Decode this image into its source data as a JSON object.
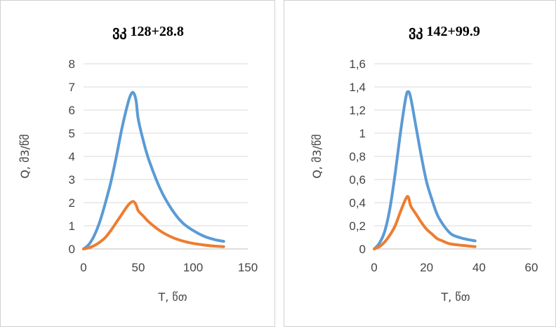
{
  "chart_data": [
    {
      "type": "line",
      "title": "ვკ 128+28.8",
      "xlabel": "T, წთ",
      "ylabel": "Q, მ3/წმ",
      "xlim": [
        0,
        150
      ],
      "ylim": [
        0,
        8
      ],
      "xticks": [
        "0",
        "50",
        "100",
        "150"
      ],
      "yticks": [
        "0",
        "1",
        "2",
        "3",
        "4",
        "5",
        "6",
        "7",
        "8"
      ],
      "grid": true,
      "series": [
        {
          "color": "#5b9bd5",
          "x": [
            0,
            5,
            10,
            15,
            20,
            25,
            30,
            35,
            40,
            43,
            45.6,
            48,
            50,
            55,
            60,
            70,
            80,
            90,
            100,
            110,
            120,
            128
          ],
          "y": [
            0,
            0.2,
            0.6,
            1.2,
            2.0,
            2.9,
            4.0,
            5.2,
            6.2,
            6.65,
            6.75,
            6.4,
            5.6,
            4.6,
            3.8,
            2.6,
            1.75,
            1.15,
            0.8,
            0.55,
            0.4,
            0.33
          ]
        },
        {
          "color": "#ed7d31",
          "x": [
            0,
            5,
            10,
            15,
            20,
            25,
            30,
            35,
            40,
            43,
            45.6,
            48,
            50,
            55,
            60,
            70,
            80,
            90,
            100,
            110,
            120,
            128
          ],
          "y": [
            0,
            0.05,
            0.15,
            0.3,
            0.5,
            0.8,
            1.15,
            1.5,
            1.85,
            2.0,
            2.05,
            1.9,
            1.65,
            1.4,
            1.15,
            0.78,
            0.52,
            0.35,
            0.24,
            0.17,
            0.12,
            0.1
          ]
        }
      ]
    },
    {
      "type": "line",
      "title": "ვკ 142+99.9",
      "xlabel": "T, წთ",
      "ylabel": "Q, მ3/წმ",
      "xlim": [
        0,
        60
      ],
      "ylim": [
        0,
        1.6
      ],
      "xticks": [
        "0",
        "20",
        "40",
        "60"
      ],
      "yticks": [
        "0",
        "0,2",
        "0,4",
        "0,6",
        "0,8",
        "1",
        "1,2",
        "1,4",
        "1,6"
      ],
      "grid": true,
      "series": [
        {
          "color": "#5b9bd5",
          "x": [
            0,
            2,
            4,
            6,
            8,
            10,
            12,
            13,
            14,
            16,
            18,
            20,
            22,
            24,
            26,
            28,
            30,
            34,
            38.5
          ],
          "y": [
            0,
            0.05,
            0.15,
            0.35,
            0.65,
            1.0,
            1.3,
            1.36,
            1.3,
            1.05,
            0.8,
            0.58,
            0.43,
            0.3,
            0.22,
            0.16,
            0.12,
            0.09,
            0.07
          ]
        },
        {
          "color": "#ed7d31",
          "x": [
            0,
            2,
            4,
            6,
            8,
            10,
            12,
            13,
            14,
            16,
            18,
            20,
            22,
            24,
            26,
            28,
            30,
            34,
            38.5
          ],
          "y": [
            0,
            0.02,
            0.06,
            0.12,
            0.2,
            0.32,
            0.43,
            0.45,
            0.37,
            0.3,
            0.23,
            0.17,
            0.13,
            0.09,
            0.07,
            0.05,
            0.04,
            0.03,
            0.02
          ]
        }
      ]
    }
  ]
}
